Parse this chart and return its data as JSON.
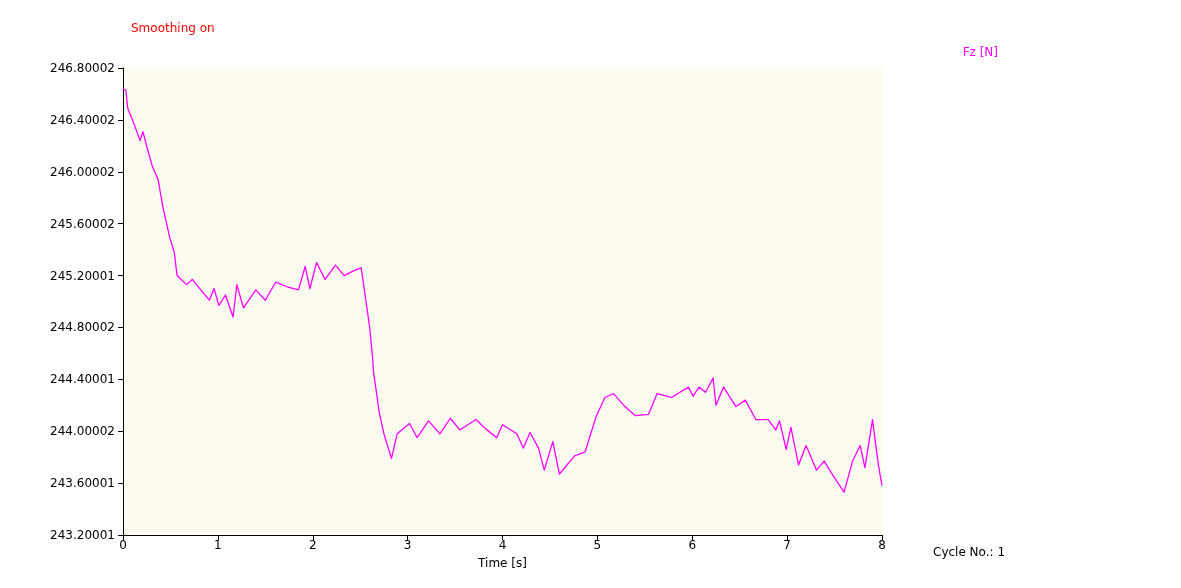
{
  "chart_data": {
    "type": "line",
    "xlabel": "Time [s]",
    "annotations": [
      "Smoothing on",
      "Cycle No.: 1"
    ],
    "legend": "top right",
    "grid": false,
    "marker": "none",
    "line_style": "solid",
    "xlim": [
      0,
      8
    ],
    "xticks": [
      0,
      1,
      2,
      3,
      4,
      5,
      6,
      7,
      8
    ],
    "ylim": [
      243.20001,
      246.80002
    ],
    "yticks": [
      243.20001,
      243.60001,
      244.00002,
      244.40001,
      244.80002,
      245.20001,
      245.60002,
      246.00002,
      246.40002,
      246.80002
    ],
    "series": [
      {
        "name": "Fz [N]",
        "color": "#ff00ff",
        "x": [
          0,
          0.03,
          0.05,
          0.1,
          0.18,
          0.21,
          0.26,
          0.31,
          0.37,
          0.42,
          0.49,
          0.54,
          0.57,
          0.67,
          0.73,
          0.82,
          0.91,
          0.96,
          1.01,
          1.08,
          1.16,
          1.2,
          1.27,
          1.4,
          1.5,
          1.61,
          1.74,
          1.85,
          1.92,
          1.97,
          2.04,
          2.13,
          2.24,
          2.33,
          2.44,
          2.51,
          2.54,
          2.6,
          2.63,
          2.64,
          2.7,
          2.75,
          2.83,
          2.89,
          3.02,
          3.1,
          3.22,
          3.34,
          3.45,
          3.55,
          3.72,
          3.82,
          3.94,
          4.0,
          4.15,
          4.22,
          4.29,
          4.38,
          4.44,
          4.53,
          4.6,
          4.76,
          4.87,
          4.99,
          5.08,
          5.17,
          5.29,
          5.4,
          5.54,
          5.63,
          5.78,
          5.96,
          6.01,
          6.07,
          6.14,
          6.22,
          6.25,
          6.33,
          6.46,
          6.56,
          6.67,
          6.8,
          6.88,
          6.92,
          6.99,
          7.04,
          7.12,
          7.2,
          7.31,
          7.39,
          7.5,
          7.6,
          7.69,
          7.77,
          7.82,
          7.9,
          7.96,
          8.0
        ],
        "values": [
          246.64,
          246.63,
          246.49,
          246.4,
          246.24,
          246.31,
          246.17,
          246.04,
          245.94,
          245.73,
          245.5,
          245.38,
          245.2,
          245.13,
          245.17,
          245.09,
          245.01,
          245.1,
          244.97,
          245.05,
          244.88,
          245.13,
          244.95,
          245.09,
          245.01,
          245.15,
          245.11,
          245.09,
          245.27,
          245.1,
          245.3,
          245.17,
          245.28,
          245.2,
          245.24,
          245.26,
          245.11,
          244.8,
          244.57,
          244.46,
          244.15,
          243.98,
          243.79,
          243.98,
          244.06,
          243.95,
          244.08,
          243.98,
          244.1,
          244.01,
          244.09,
          244.02,
          243.95,
          244.05,
          243.98,
          243.87,
          243.99,
          243.87,
          243.7,
          243.92,
          243.67,
          243.81,
          243.84,
          244.12,
          244.26,
          244.29,
          244.19,
          244.12,
          244.13,
          244.29,
          244.26,
          244.34,
          244.27,
          244.34,
          244.3,
          244.41,
          244.2,
          244.34,
          244.19,
          244.24,
          244.09,
          244.09,
          244.01,
          244.08,
          243.86,
          244.03,
          243.74,
          243.89,
          243.7,
          243.77,
          243.64,
          243.53,
          243.77,
          243.89,
          243.72,
          244.09,
          243.75,
          243.58
        ]
      }
    ]
  }
}
